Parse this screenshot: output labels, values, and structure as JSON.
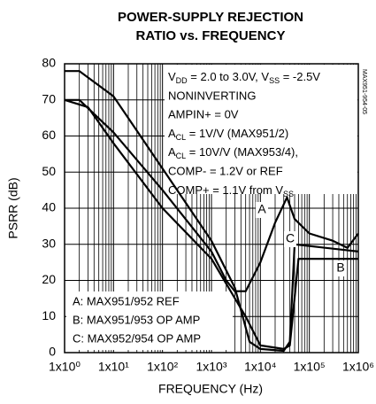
{
  "chart_data": {
    "type": "line",
    "title": [
      "POWER-SUPPLY REJECTION",
      "RATIO vs. FREQUENCY"
    ],
    "x_label": "FREQUENCY (Hz)",
    "y_label": "PSRR (dB)",
    "xscale": "log",
    "xlim": [
      1,
      1000000
    ],
    "ylim": [
      0,
      80
    ],
    "xticks": [
      {
        "value": 1,
        "label": "1x10⁰"
      },
      {
        "value": 10,
        "label": "1x10¹"
      },
      {
        "value": 100,
        "label": "1x10²"
      },
      {
        "value": 1000,
        "label": "1x10³"
      },
      {
        "value": 10000,
        "label": "1x10⁴"
      },
      {
        "value": 100000,
        "label": "1x10⁵"
      },
      {
        "value": 1000000,
        "label": "1x10⁶"
      }
    ],
    "yticks": [
      0,
      10,
      20,
      30,
      40,
      50,
      60,
      70,
      80
    ],
    "grid": true,
    "minor_grid": true,
    "conditions": [
      [
        {
          "t": "V"
        },
        {
          "sub": "DD"
        },
        {
          "t": " = 2.0 to 3.0V, V"
        },
        {
          "sub": "SS"
        },
        {
          "t": " = -2.5V"
        }
      ],
      [
        {
          "t": "NONINVERTING"
        }
      ],
      [
        {
          "t": "AMPIN+ = 0V"
        }
      ],
      [
        {
          "t": "A"
        },
        {
          "sub": "CL"
        },
        {
          "t": " = 1V/V (MAX951/2)"
        }
      ],
      [
        {
          "t": "A"
        },
        {
          "sub": "CL"
        },
        {
          "t": " = 10V/V (MAX953/4),"
        }
      ],
      [
        {
          "t": "COMP- = 1.2V or REF"
        }
      ],
      [
        {
          "t": "COMP+ = 1.1V from V"
        },
        {
          "sub": "SS"
        }
      ]
    ],
    "legend": [
      "A: MAX951/952 REF",
      "B: MAX951/953 OP AMP",
      "C: MAX952/954 OP AMP"
    ],
    "figure_id": "MAX951-954-05",
    "series": [
      {
        "name": "A",
        "color": "#000000",
        "x": [
          1,
          2,
          10,
          100,
          1000,
          2000,
          3000,
          5000,
          10000,
          20000,
          35000,
          50000,
          100000,
          300000,
          600000,
          1000000
        ],
        "values": [
          70,
          70,
          61,
          45,
          28,
          20,
          17,
          17,
          25,
          36,
          43,
          37,
          33,
          31,
          29,
          33
        ]
      },
      {
        "name": "B",
        "color": "#000000",
        "x": [
          1,
          3,
          10,
          100,
          1000,
          5000,
          10000,
          30000,
          40000,
          60000,
          100000,
          1000000
        ],
        "values": [
          70,
          68,
          58,
          40,
          26,
          10,
          2,
          1,
          2,
          26,
          26,
          26
        ]
      },
      {
        "name": "C",
        "color": "#000000",
        "x": [
          1,
          2,
          10,
          100,
          1000,
          3000,
          6000,
          10000,
          30000,
          40000,
          50000,
          1000000
        ],
        "values": [
          78,
          78,
          71,
          51,
          31,
          18,
          3,
          1,
          0.5,
          3,
          30,
          28
        ]
      }
    ]
  }
}
